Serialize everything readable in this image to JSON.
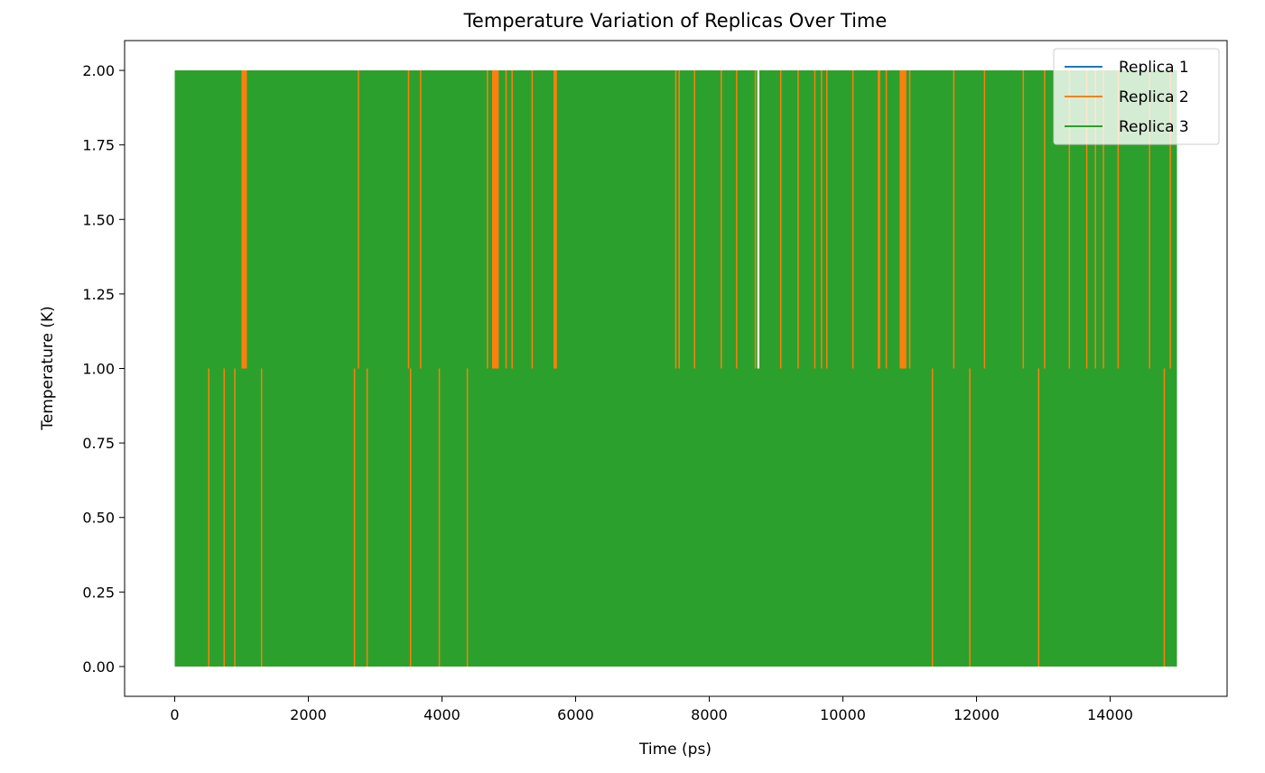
{
  "chart_data": {
    "type": "line",
    "title": "Temperature Variation of Replicas Over Time",
    "xlabel": "Time (ps)",
    "ylabel": "Temperature (K)",
    "xlim": [
      -750,
      15750
    ],
    "ylim": [
      -0.1,
      2.1
    ],
    "x_ticks": [
      0,
      2000,
      4000,
      6000,
      8000,
      10000,
      12000,
      14000
    ],
    "y_ticks": [
      0.0,
      0.25,
      0.5,
      0.75,
      1.0,
      1.25,
      1.5,
      1.75,
      2.0
    ],
    "grid": false,
    "legend_position": "top-right",
    "x_range": [
      0,
      15000
    ],
    "temperature_levels": [
      0,
      1,
      2
    ],
    "series": [
      {
        "name": "Replica 1",
        "color": "#1f77b4"
      },
      {
        "name": "Replica 2",
        "color": "#ff7f0e"
      },
      {
        "name": "Replica 3",
        "color": "#2ca02c"
      }
    ],
    "replica2_lower_switch_times": [
      510,
      740,
      900,
      1300,
      2690,
      2880,
      3530,
      3960,
      4380,
      11340,
      11900,
      12930,
      14810
    ],
    "replica2_upper_bands": [
      [
        1000,
        1080
      ],
      [
        4750,
        4850
      ],
      [
        5670,
        5720
      ],
      [
        10520,
        10560
      ],
      [
        10850,
        10950
      ]
    ],
    "replica2_upper_switch_times": [
      2750,
      3500,
      3680,
      4680,
      4960,
      5050,
      5350,
      7500,
      7550,
      7780,
      8180,
      8410,
      8690,
      9070,
      9330,
      9580,
      9680,
      9760,
      10150,
      10650,
      11000,
      11660,
      12120,
      12700,
      13020,
      13390,
      13650,
      13780,
      13900,
      14120,
      14590,
      14900
    ],
    "replica1_upper_gap": [
      8720,
      8750
    ]
  }
}
